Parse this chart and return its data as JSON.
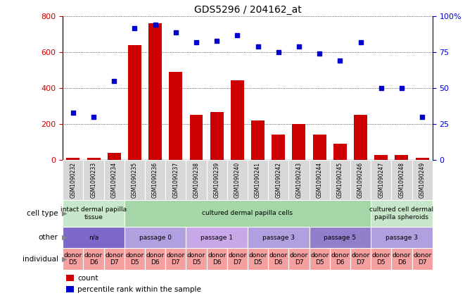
{
  "title": "GDS5296 / 204162_at",
  "samples": [
    "GSM1090232",
    "GSM1090233",
    "GSM1090234",
    "GSM1090235",
    "GSM1090236",
    "GSM1090237",
    "GSM1090238",
    "GSM1090239",
    "GSM1090240",
    "GSM1090241",
    "GSM1090242",
    "GSM1090243",
    "GSM1090244",
    "GSM1090245",
    "GSM1090246",
    "GSM1090247",
    "GSM1090248",
    "GSM1090249"
  ],
  "counts": [
    10,
    12,
    40,
    640,
    760,
    490,
    250,
    265,
    445,
    220,
    140,
    200,
    140,
    90,
    250,
    25,
    25,
    10
  ],
  "percentiles": [
    33,
    30,
    55,
    92,
    94,
    89,
    82,
    83,
    87,
    79,
    75,
    79,
    74,
    69,
    82,
    50,
    50,
    30
  ],
  "cell_type_groups": [
    {
      "label": "intact dermal papilla\ntissue",
      "start": 0,
      "end": 3,
      "color": "#c8e6c9"
    },
    {
      "label": "cultured dermal papilla cells",
      "start": 3,
      "end": 15,
      "color": "#a5d6a7"
    },
    {
      "label": "cultured cell dermal\npapilla spheroids",
      "start": 15,
      "end": 18,
      "color": "#c8e6c9"
    }
  ],
  "other_groups": [
    {
      "label": "n/a",
      "start": 0,
      "end": 3,
      "color": "#7b68c8"
    },
    {
      "label": "passage 0",
      "start": 3,
      "end": 6,
      "color": "#b0a0e0"
    },
    {
      "label": "passage 1",
      "start": 6,
      "end": 9,
      "color": "#c8a8e8"
    },
    {
      "label": "passage 3",
      "start": 9,
      "end": 12,
      "color": "#b0a0e0"
    },
    {
      "label": "passage 5",
      "start": 12,
      "end": 15,
      "color": "#9080cc"
    },
    {
      "label": "passage 3",
      "start": 15,
      "end": 18,
      "color": "#b0a0e0"
    }
  ],
  "bar_color": "#cc0000",
  "dot_color": "#0000cc",
  "ylim_left": [
    0,
    800
  ],
  "ylim_right": [
    0,
    100
  ],
  "yticks_left": [
    0,
    200,
    400,
    600,
    800
  ],
  "yticks_right": [
    0,
    25,
    50,
    75,
    100
  ],
  "legend_bar_label": "count",
  "legend_dot_label": "percentile rank within the sample",
  "row_labels": [
    "cell type",
    "other",
    "individual"
  ],
  "ind_color": "#f4a0a0",
  "ind_label_top": "donor",
  "ind_donors": [
    "D5",
    "D6",
    "D7",
    "D5",
    "D6",
    "D7",
    "D5",
    "D6",
    "D7",
    "D5",
    "D6",
    "D7",
    "D5",
    "D6",
    "D7",
    "D5",
    "D6",
    "D7"
  ]
}
